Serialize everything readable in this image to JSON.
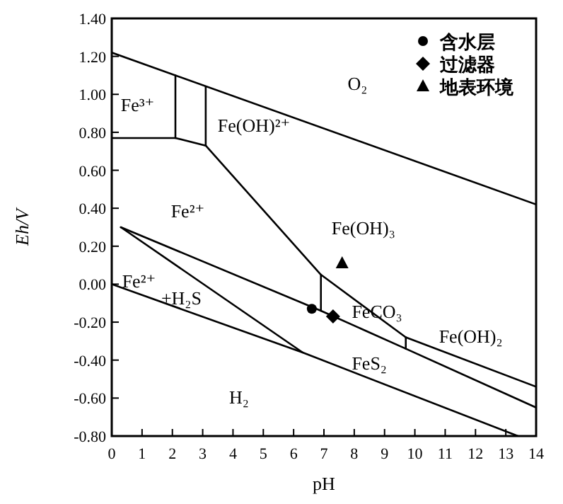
{
  "chart_data": {
    "type": "line",
    "xlabel": "pH",
    "ylabel": "Eh/V",
    "xlim": [
      0,
      14
    ],
    "ylim": [
      -0.8,
      1.4
    ],
    "xticks": [
      0,
      1,
      2,
      3,
      4,
      5,
      6,
      7,
      8,
      9,
      10,
      11,
      12,
      13,
      14
    ],
    "yticks": [
      {
        "value": -0.8,
        "label": "-0.80"
      },
      {
        "value": -0.6,
        "label": "-0.60"
      },
      {
        "value": -0.4,
        "label": "-0.40"
      },
      {
        "value": -0.2,
        "label": "-0.20"
      },
      {
        "value": 0,
        "label": "0.00"
      },
      {
        "value": 0.2,
        "label": "0.20"
      },
      {
        "value": 0.4,
        "label": "0.40"
      },
      {
        "value": 0.6,
        "label": "0.60"
      },
      {
        "value": 0.8,
        "label": "0.80"
      },
      {
        "value": 1.0,
        "label": "1.00"
      },
      {
        "value": 1.2,
        "label": "1.20"
      },
      {
        "value": 1.4,
        "label": "1.40"
      }
    ],
    "grid": false,
    "legend": "top right",
    "line_style": "solid",
    "series": [
      {
        "color": "#000000",
        "marker": "none",
        "x": [
          0,
          14
        ],
        "values": [
          1.22,
          0.42
        ]
      },
      {
        "color": "#000000",
        "marker": "none",
        "x": [
          0,
          2.1,
          3.1
        ],
        "values": [
          0.77,
          0.77,
          0.73
        ]
      },
      {
        "color": "#000000",
        "marker": "none",
        "x": [
          2.1,
          2.1
        ],
        "values": [
          0.77,
          1.1
        ]
      },
      {
        "color": "#000000",
        "marker": "none",
        "x": [
          3.1,
          3.1
        ],
        "values": [
          0.73,
          1.04
        ]
      },
      {
        "color": "#000000",
        "marker": "none",
        "x": [
          3.1,
          6.9,
          9.7,
          14
        ],
        "values": [
          0.73,
          0.05,
          -0.28,
          -0.54
        ]
      },
      {
        "color": "#000000",
        "marker": "none",
        "x": [
          6.9,
          6.9
        ],
        "values": [
          0.05,
          -0.14
        ]
      },
      {
        "color": "#000000",
        "marker": "none",
        "x": [
          9.7,
          9.7
        ],
        "values": [
          -0.28,
          -0.34
        ]
      },
      {
        "color": "#000000",
        "marker": "none",
        "x": [
          0.3,
          6.9,
          9.7,
          14
        ],
        "values": [
          0.3,
          -0.14,
          -0.34,
          -0.65
        ]
      },
      {
        "color": "#000000",
        "marker": "none",
        "x": [
          0.3,
          6.3
        ],
        "values": [
          0.3,
          -0.36
        ]
      },
      {
        "color": "#000000",
        "marker": "none",
        "x": [
          0,
          6.3,
          13.4
        ],
        "values": [
          0,
          -0.36,
          -0.8
        ]
      },
      {
        "type": "scatter",
        "name": "含水层",
        "color": "#000000",
        "marker": "circle",
        "x": [
          6.6
        ],
        "values": [
          -0.13
        ]
      },
      {
        "type": "scatter",
        "name": "过滤器",
        "color": "#000000",
        "marker": "diamond",
        "x": [
          7.3
        ],
        "values": [
          -0.17
        ]
      },
      {
        "type": "scatter",
        "name": "地表环境",
        "color": "#000000",
        "marker": "triangle",
        "x": [
          7.6
        ],
        "values": [
          0.11
        ]
      }
    ],
    "annotations": [
      "Fe³⁺",
      "Fe(OH)²⁺",
      "O₂",
      "Fe²⁺",
      "Fe(OH)₃",
      "Fe²⁺",
      "+H₂S",
      "FeCO₃",
      "Fe(OH)₂",
      "FeS₂",
      "H₂"
    ]
  }
}
